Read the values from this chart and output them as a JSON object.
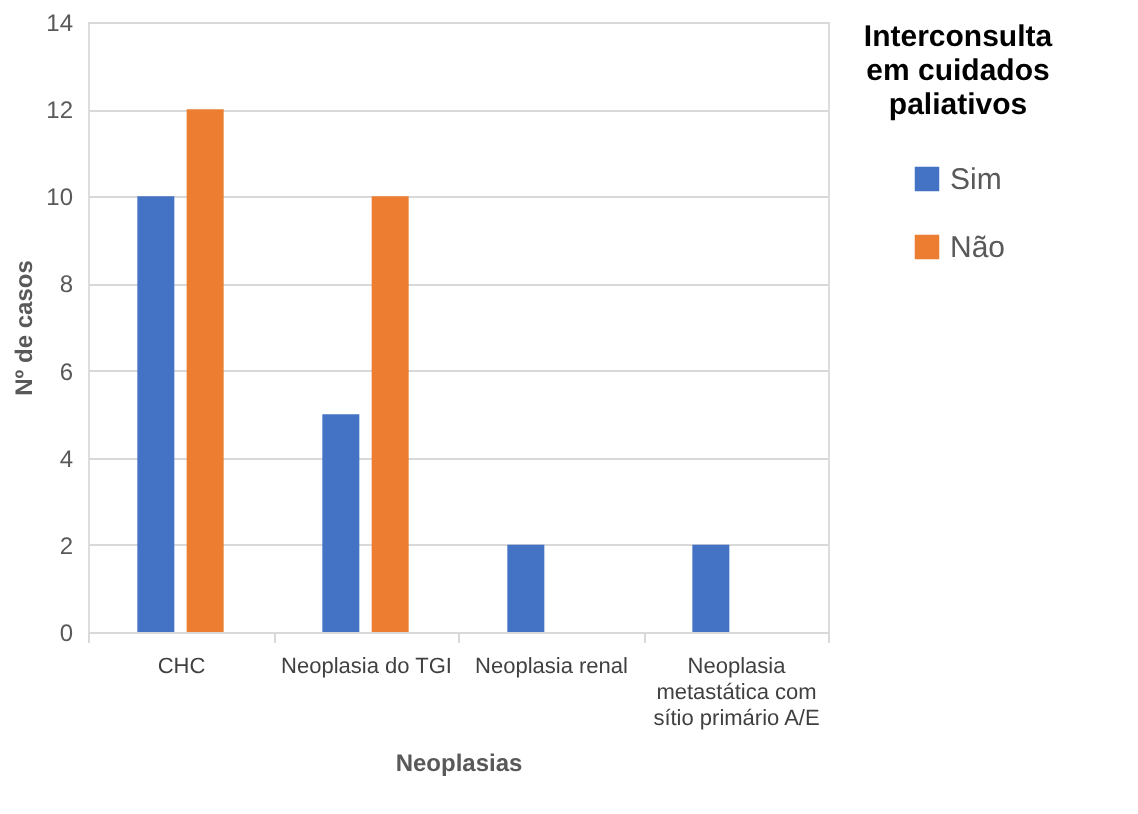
{
  "chart_data": {
    "type": "bar",
    "xlabel": "Neoplasias",
    "ylabel": "Nº de casos",
    "legend_title": "Interconsulta em cuidados paliativos",
    "categories": [
      "CHC",
      "Neoplasia do TGI",
      "Neoplasia renal",
      "Neoplasia metastática com sítio primário A/E"
    ],
    "series": [
      {
        "name": "Sim",
        "color": "#4472c4",
        "values": [
          10,
          5,
          2,
          2
        ]
      },
      {
        "name": "Não",
        "color": "#ed7d31",
        "values": [
          12,
          10,
          0,
          0
        ]
      }
    ],
    "ylim": [
      0,
      14
    ],
    "yticks": [
      0,
      2,
      4,
      6,
      8,
      10,
      12,
      14
    ],
    "grid": "y",
    "legend": "right"
  }
}
